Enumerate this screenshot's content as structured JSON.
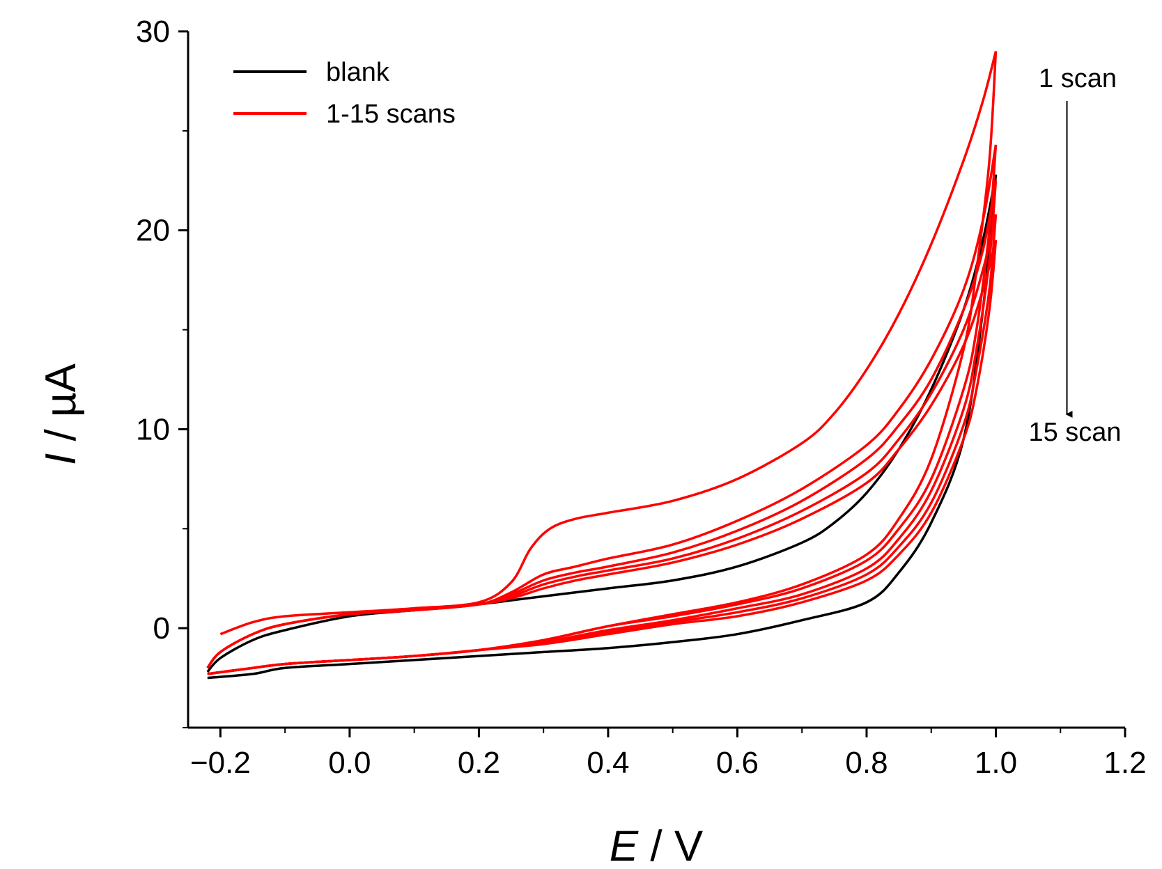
{
  "chart_data": {
    "type": "line",
    "title": "",
    "xlabel_italic": "E",
    "xlabel_unit": " / V",
    "ylabel_italic": "I",
    "ylabel_unit": " / µA",
    "xlim": [
      -0.25,
      1.2
    ],
    "ylim": [
      -5,
      30
    ],
    "xticks": [
      -0.2,
      0.0,
      0.2,
      0.4,
      0.6,
      0.8,
      1.0,
      1.2
    ],
    "xtick_labels": [
      "−0.2",
      "0.0",
      "0.2",
      "0.4",
      "0.6",
      "0.8",
      "1.0",
      "1.2"
    ],
    "yticks": [
      0,
      10,
      20,
      30
    ],
    "ytick_labels": [
      "0",
      "10",
      "20",
      "30"
    ],
    "legend_position": "top-left",
    "legend": [
      {
        "label": "blank",
        "color": "#000000"
      },
      {
        "label": "1-15 scans",
        "color": "#ff0000"
      }
    ],
    "annotations": {
      "start": "1 scan",
      "end": "15 scan",
      "arrow_x": 1.11
    },
    "series": [
      {
        "name": "blank",
        "color": "#000000",
        "forward": [
          [
            -0.22,
            -2.2
          ],
          [
            -0.2,
            -1.5
          ],
          [
            -0.15,
            -0.6
          ],
          [
            -0.1,
            -0.1
          ],
          [
            0.0,
            0.6
          ],
          [
            0.1,
            0.9
          ],
          [
            0.2,
            1.2
          ],
          [
            0.25,
            1.4
          ],
          [
            0.3,
            1.6
          ],
          [
            0.4,
            2.0
          ],
          [
            0.5,
            2.4
          ],
          [
            0.6,
            3.1
          ],
          [
            0.7,
            4.3
          ],
          [
            0.75,
            5.3
          ],
          [
            0.8,
            6.8
          ],
          [
            0.85,
            9.0
          ],
          [
            0.9,
            12.0
          ],
          [
            0.95,
            16.0
          ],
          [
            0.98,
            19.5
          ],
          [
            1.0,
            22.8
          ]
        ],
        "reverse": [
          [
            1.0,
            22.8
          ],
          [
            0.98,
            16.0
          ],
          [
            0.95,
            9.5
          ],
          [
            0.9,
            5.3
          ],
          [
            0.85,
            2.8
          ],
          [
            0.8,
            1.3
          ],
          [
            0.7,
            0.4
          ],
          [
            0.6,
            -0.3
          ],
          [
            0.5,
            -0.7
          ],
          [
            0.4,
            -1.0
          ],
          [
            0.3,
            -1.2
          ],
          [
            0.2,
            -1.4
          ],
          [
            0.1,
            -1.6
          ],
          [
            0.0,
            -1.8
          ],
          [
            -0.1,
            -2.0
          ],
          [
            -0.15,
            -2.3
          ],
          [
            -0.22,
            -2.5
          ]
        ]
      },
      {
        "name": "1-15 scans (scan 1)",
        "color": "#ff0000",
        "forward": [
          [
            -0.2,
            -0.3
          ],
          [
            -0.15,
            0.3
          ],
          [
            -0.1,
            0.6
          ],
          [
            0.0,
            0.8
          ],
          [
            0.1,
            1.0
          ],
          [
            0.2,
            1.3
          ],
          [
            0.25,
            2.3
          ],
          [
            0.28,
            4.0
          ],
          [
            0.31,
            5.0
          ],
          [
            0.35,
            5.5
          ],
          [
            0.4,
            5.8
          ],
          [
            0.5,
            6.4
          ],
          [
            0.6,
            7.5
          ],
          [
            0.7,
            9.3
          ],
          [
            0.75,
            10.8
          ],
          [
            0.8,
            13.0
          ],
          [
            0.85,
            15.8
          ],
          [
            0.9,
            19.3
          ],
          [
            0.95,
            23.5
          ],
          [
            0.98,
            26.5
          ],
          [
            1.0,
            29.0
          ]
        ],
        "reverse": [
          [
            1.0,
            29.0
          ],
          [
            0.99,
            23.5
          ],
          [
            0.97,
            18.0
          ],
          [
            0.95,
            14.0
          ],
          [
            0.9,
            8.5
          ],
          [
            0.85,
            5.5
          ],
          [
            0.8,
            3.7
          ],
          [
            0.7,
            2.2
          ],
          [
            0.6,
            1.3
          ],
          [
            0.5,
            0.7
          ],
          [
            0.4,
            0.1
          ],
          [
            0.3,
            -0.6
          ],
          [
            0.2,
            -1.1
          ],
          [
            0.1,
            -1.4
          ],
          [
            0.0,
            -1.6
          ],
          [
            -0.1,
            -1.8
          ],
          [
            -0.15,
            -2.0
          ],
          [
            -0.22,
            -2.3
          ]
        ]
      },
      {
        "name": "1-15 scans (scan 2)",
        "color": "#ff0000",
        "forward": [
          [
            -0.22,
            -2.0
          ],
          [
            -0.2,
            -1.2
          ],
          [
            -0.15,
            -0.3
          ],
          [
            -0.1,
            0.2
          ],
          [
            0.0,
            0.7
          ],
          [
            0.1,
            0.9
          ],
          [
            0.2,
            1.2
          ],
          [
            0.25,
            1.8
          ],
          [
            0.3,
            2.7
          ],
          [
            0.35,
            3.1
          ],
          [
            0.4,
            3.5
          ],
          [
            0.5,
            4.2
          ],
          [
            0.6,
            5.4
          ],
          [
            0.7,
            7.0
          ],
          [
            0.8,
            9.2
          ],
          [
            0.85,
            11.0
          ],
          [
            0.9,
            13.5
          ],
          [
            0.95,
            17.0
          ],
          [
            0.98,
            20.5
          ],
          [
            1.0,
            24.3
          ]
        ],
        "reverse": [
          [
            1.0,
            24.3
          ],
          [
            0.99,
            20.0
          ],
          [
            0.97,
            15.0
          ],
          [
            0.95,
            12.0
          ],
          [
            0.9,
            7.5
          ],
          [
            0.85,
            5.0
          ],
          [
            0.8,
            3.4
          ],
          [
            0.7,
            2.0
          ],
          [
            0.6,
            1.2
          ],
          [
            0.5,
            0.6
          ],
          [
            0.4,
            0.1
          ],
          [
            0.3,
            -0.6
          ],
          [
            0.2,
            -1.1
          ],
          [
            0.1,
            -1.4
          ],
          [
            0.0,
            -1.6
          ],
          [
            -0.1,
            -1.8
          ],
          [
            -0.15,
            -2.0
          ],
          [
            -0.22,
            -2.3
          ]
        ]
      },
      {
        "name": "1-15 scans (scan 5)",
        "color": "#ff0000",
        "forward": [
          [
            -0.22,
            -2.0
          ],
          [
            -0.2,
            -1.2
          ],
          [
            -0.15,
            -0.3
          ],
          [
            -0.1,
            0.2
          ],
          [
            0.0,
            0.7
          ],
          [
            0.1,
            0.9
          ],
          [
            0.2,
            1.2
          ],
          [
            0.25,
            1.7
          ],
          [
            0.3,
            2.4
          ],
          [
            0.35,
            2.8
          ],
          [
            0.4,
            3.1
          ],
          [
            0.5,
            3.8
          ],
          [
            0.6,
            4.9
          ],
          [
            0.7,
            6.4
          ],
          [
            0.8,
            8.5
          ],
          [
            0.85,
            10.2
          ],
          [
            0.9,
            12.5
          ],
          [
            0.95,
            16.0
          ],
          [
            0.98,
            19.0
          ],
          [
            1.0,
            22.5
          ]
        ],
        "reverse": [
          [
            1.0,
            22.5
          ],
          [
            0.99,
            18.5
          ],
          [
            0.97,
            14.0
          ],
          [
            0.95,
            11.0
          ],
          [
            0.9,
            6.9
          ],
          [
            0.85,
            4.5
          ],
          [
            0.8,
            3.0
          ],
          [
            0.7,
            1.7
          ],
          [
            0.6,
            1.0
          ],
          [
            0.5,
            0.4
          ],
          [
            0.4,
            -0.1
          ],
          [
            0.3,
            -0.7
          ],
          [
            0.2,
            -1.1
          ],
          [
            0.1,
            -1.4
          ],
          [
            0.0,
            -1.6
          ],
          [
            -0.1,
            -1.8
          ],
          [
            -0.15,
            -2.0
          ],
          [
            -0.22,
            -2.3
          ]
        ]
      },
      {
        "name": "1-15 scans (scan 10)",
        "color": "#ff0000",
        "forward": [
          [
            -0.22,
            -2.0
          ],
          [
            -0.2,
            -1.2
          ],
          [
            -0.15,
            -0.3
          ],
          [
            -0.1,
            0.2
          ],
          [
            0.0,
            0.7
          ],
          [
            0.1,
            0.9
          ],
          [
            0.2,
            1.2
          ],
          [
            0.25,
            1.6
          ],
          [
            0.3,
            2.2
          ],
          [
            0.35,
            2.6
          ],
          [
            0.4,
            2.9
          ],
          [
            0.5,
            3.5
          ],
          [
            0.6,
            4.5
          ],
          [
            0.7,
            5.9
          ],
          [
            0.8,
            7.8
          ],
          [
            0.85,
            9.5
          ],
          [
            0.9,
            11.8
          ],
          [
            0.95,
            15.0
          ],
          [
            0.98,
            18.0
          ],
          [
            1.0,
            20.8
          ]
        ],
        "reverse": [
          [
            1.0,
            20.8
          ],
          [
            0.99,
            17.0
          ],
          [
            0.97,
            13.0
          ],
          [
            0.95,
            10.2
          ],
          [
            0.9,
            6.3
          ],
          [
            0.85,
            4.1
          ],
          [
            0.8,
            2.7
          ],
          [
            0.7,
            1.5
          ],
          [
            0.6,
            0.8
          ],
          [
            0.5,
            0.3
          ],
          [
            0.4,
            -0.2
          ],
          [
            0.3,
            -0.7
          ],
          [
            0.2,
            -1.1
          ],
          [
            0.1,
            -1.4
          ],
          [
            0.0,
            -1.6
          ],
          [
            -0.1,
            -1.8
          ],
          [
            -0.15,
            -2.0
          ],
          [
            -0.22,
            -2.3
          ]
        ]
      },
      {
        "name": "1-15 scans (scan 15)",
        "color": "#ff0000",
        "forward": [
          [
            -0.22,
            -2.0
          ],
          [
            -0.2,
            -1.2
          ],
          [
            -0.15,
            -0.3
          ],
          [
            -0.1,
            0.2
          ],
          [
            0.0,
            0.7
          ],
          [
            0.1,
            0.9
          ],
          [
            0.2,
            1.2
          ],
          [
            0.25,
            1.5
          ],
          [
            0.3,
            2.0
          ],
          [
            0.35,
            2.4
          ],
          [
            0.4,
            2.7
          ],
          [
            0.5,
            3.3
          ],
          [
            0.6,
            4.2
          ],
          [
            0.7,
            5.5
          ],
          [
            0.8,
            7.3
          ],
          [
            0.85,
            9.0
          ],
          [
            0.9,
            11.2
          ],
          [
            0.95,
            14.2
          ],
          [
            0.98,
            17.0
          ],
          [
            1.0,
            19.5
          ]
        ],
        "reverse": [
          [
            1.0,
            19.5
          ],
          [
            0.99,
            16.0
          ],
          [
            0.97,
            12.0
          ],
          [
            0.95,
            9.5
          ],
          [
            0.9,
            5.8
          ],
          [
            0.85,
            3.7
          ],
          [
            0.8,
            2.4
          ],
          [
            0.7,
            1.3
          ],
          [
            0.6,
            0.6
          ],
          [
            0.5,
            0.2
          ],
          [
            0.4,
            -0.3
          ],
          [
            0.3,
            -0.8
          ],
          [
            0.2,
            -1.1
          ],
          [
            0.1,
            -1.4
          ],
          [
            0.0,
            -1.6
          ],
          [
            -0.1,
            -1.8
          ],
          [
            -0.15,
            -2.0
          ],
          [
            -0.22,
            -2.3
          ]
        ]
      }
    ]
  }
}
